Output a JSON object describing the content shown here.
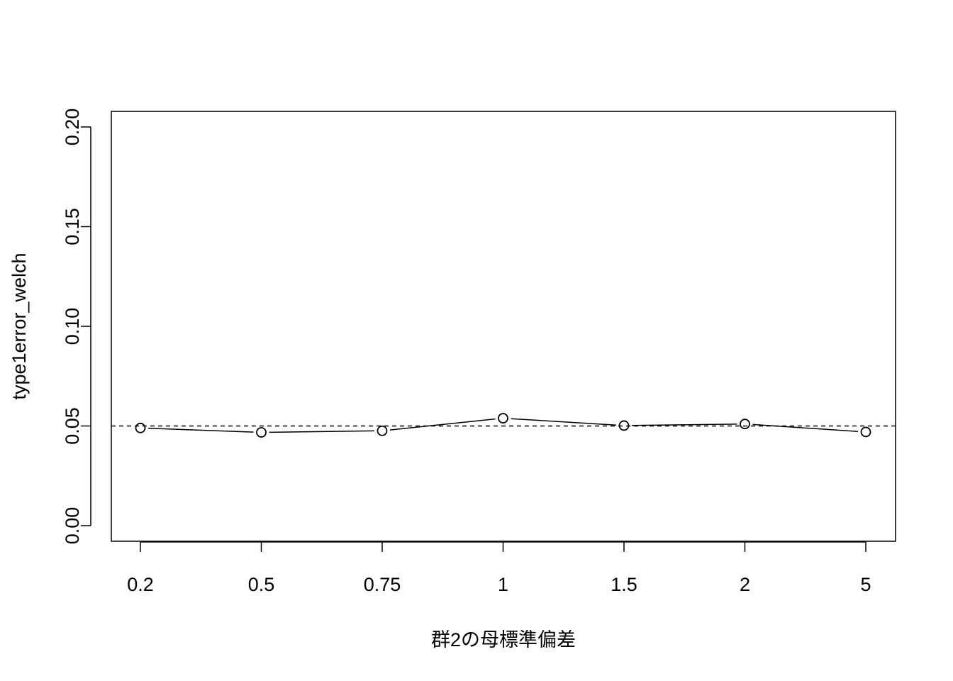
{
  "chart_data": {
    "type": "line",
    "categories": [
      "0.2",
      "0.5",
      "0.75",
      "1",
      "1.5",
      "2",
      "5"
    ],
    "series": [
      {
        "values": [
          0.049,
          0.0468,
          0.0476,
          0.0539,
          0.0502,
          0.051,
          0.047
        ],
        "markers": "open-circle",
        "line": "solid"
      }
    ],
    "reference_line": {
      "y": 0.05,
      "style": "dashed"
    },
    "xlabel": "群2の母標準偏差",
    "ylabel": "type1error_welch",
    "ylim": [
      0,
      0.2
    ],
    "yticks": [
      "0.00",
      "0.05",
      "0.10",
      "0.15",
      "0.20"
    ],
    "grid": false,
    "colors": {
      "line": "#000000",
      "background": "#ffffff"
    }
  }
}
